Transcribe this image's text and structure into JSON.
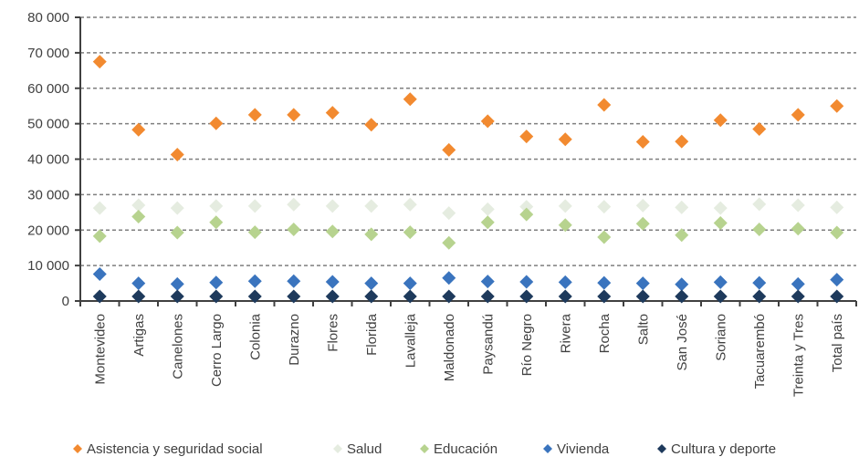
{
  "chart_data": {
    "type": "scatter",
    "ylim": [
      0,
      80000
    ],
    "yticks": [
      0,
      10000,
      20000,
      30000,
      40000,
      50000,
      60000,
      70000,
      80000
    ],
    "ytick_labels": [
      "0",
      "10 000",
      "20 000",
      "30 000",
      "40 000",
      "50 000",
      "60 000",
      "70 000",
      "80 000"
    ],
    "grid": true,
    "legend_position": "bottom",
    "categories": [
      "Montevideo",
      "Artigas",
      "Canelones",
      "Cerro Largo",
      "Colonia",
      "Durazno",
      "Flores",
      "Florida",
      "Lavalleja",
      "Maldonado",
      "Paysandú",
      "Río Negro",
      "Rivera",
      "Rocha",
      "Salto",
      "San José",
      "Soriano",
      "Tacuarembó",
      "Treinta y Tres",
      "Total país"
    ],
    "series": [
      {
        "name": "Asistencia y seguridad social",
        "color": "#f28a30",
        "marker": "diamond",
        "values": [
          67500,
          48300,
          41300,
          50100,
          52500,
          52500,
          53100,
          49700,
          56900,
          42600,
          50700,
          46400,
          45600,
          55300,
          44900,
          45000,
          51000,
          48500,
          52500,
          55000
        ]
      },
      {
        "name": "Salud",
        "color": "#e5ece0",
        "marker": "diamond",
        "values": [
          26200,
          27000,
          26200,
          26800,
          26800,
          27200,
          26800,
          26800,
          27200,
          24800,
          25900,
          26600,
          26800,
          26600,
          26900,
          26400,
          26200,
          27300,
          27000,
          26400
        ]
      },
      {
        "name": "Educación",
        "color": "#b7d38f",
        "marker": "diamond",
        "values": [
          18300,
          23800,
          19300,
          22200,
          19400,
          20200,
          19600,
          18800,
          19400,
          16400,
          22200,
          24400,
          21400,
          18000,
          21800,
          18600,
          22000,
          20200,
          20400,
          19300
        ]
      },
      {
        "name": "Vivienda",
        "color": "#3a74be",
        "marker": "diamond",
        "values": [
          7600,
          5000,
          4800,
          5200,
          5600,
          5600,
          5400,
          5000,
          5000,
          6500,
          5500,
          5400,
          5300,
          5100,
          5000,
          4700,
          5300,
          5100,
          4800,
          6000
        ]
      },
      {
        "name": "Cultura y deporte",
        "color": "#1e3a5c",
        "marker": "diamond",
        "values": [
          1300,
          1300,
          1300,
          1300,
          1300,
          1300,
          1300,
          1300,
          1300,
          1300,
          1300,
          1300,
          1300,
          1300,
          1300,
          1300,
          1300,
          1300,
          1300,
          1300
        ]
      }
    ]
  }
}
